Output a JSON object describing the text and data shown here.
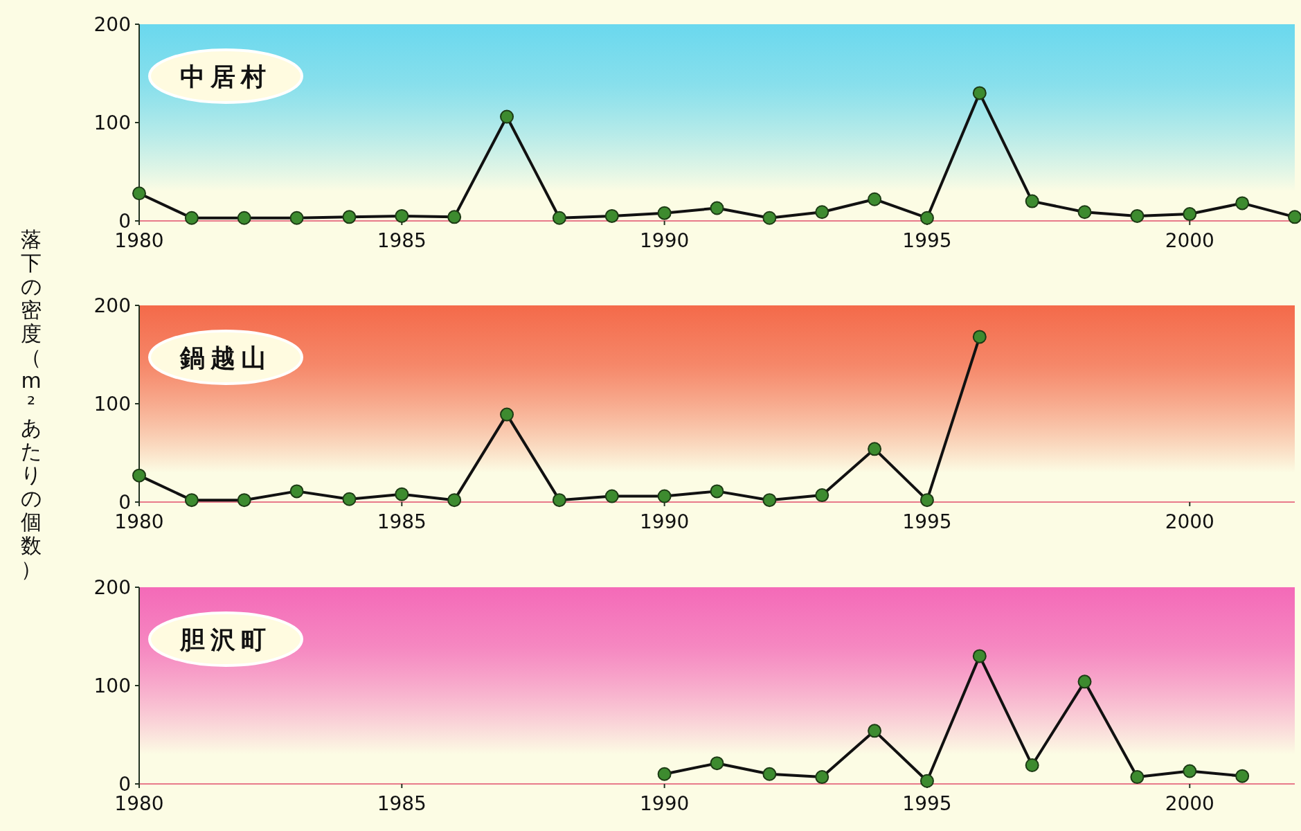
{
  "chart_data": [
    {
      "type": "line",
      "title": "中居村",
      "ylabel": "落下の密度（m²あたりの個数）",
      "xlim": [
        1980,
        2002
      ],
      "xticks": [
        1980,
        1985,
        1990,
        1995,
        2000
      ],
      "ylim": [
        0,
        200
      ],
      "yticks": [
        0,
        100,
        200
      ],
      "grid": false,
      "marker": "circle",
      "line_style": "solid",
      "series": [
        {
          "color": "#3d8b2f",
          "x": [
            1980,
            1981,
            1982,
            1983,
            1984,
            1985,
            1986,
            1987,
            1988,
            1989,
            1990,
            1991,
            1992,
            1993,
            1994,
            1995,
            1996,
            1997,
            1998,
            1999,
            2000,
            2001,
            2002
          ],
          "values": [
            28,
            3,
            3,
            3,
            4,
            5,
            4,
            106,
            3,
            5,
            8,
            13,
            3,
            9,
            22,
            3,
            130,
            20,
            9,
            5,
            7,
            18,
            4
          ]
        }
      ]
    },
    {
      "type": "line",
      "title": "鍋越山",
      "xlim": [
        1980,
        2002
      ],
      "xticks": [
        1980,
        1985,
        1990,
        1995,
        2000
      ],
      "ylim": [
        0,
        200
      ],
      "yticks": [
        0,
        100,
        200
      ],
      "grid": false,
      "marker": "circle",
      "line_style": "solid",
      "series": [
        {
          "color": "#3d8b2f",
          "x": [
            1980,
            1981,
            1982,
            1983,
            1984,
            1985,
            1986,
            1987,
            1988,
            1989,
            1990,
            1991,
            1992,
            1993,
            1994,
            1995,
            1996
          ],
          "values": [
            27,
            2,
            2,
            11,
            3,
            8,
            2,
            89,
            2,
            6,
            6,
            11,
            2,
            7,
            54,
            2,
            168
          ]
        }
      ]
    },
    {
      "type": "line",
      "title": "胆沢町",
      "xlim": [
        1980,
        2002
      ],
      "xticks": [
        1980,
        1985,
        1990,
        1995,
        2000
      ],
      "ylim": [
        0,
        200
      ],
      "yticks": [
        0,
        100,
        200
      ],
      "grid": false,
      "marker": "circle",
      "line_style": "solid",
      "series": [
        {
          "color": "#3d8b2f",
          "x": [
            1990,
            1991,
            1992,
            1993,
            1994,
            1995,
            1996,
            1997,
            1998,
            1999,
            2000,
            2001
          ],
          "values": [
            10,
            21,
            10,
            7,
            54,
            3,
            130,
            19,
            104,
            7,
            13,
            8
          ]
        }
      ]
    }
  ]
}
